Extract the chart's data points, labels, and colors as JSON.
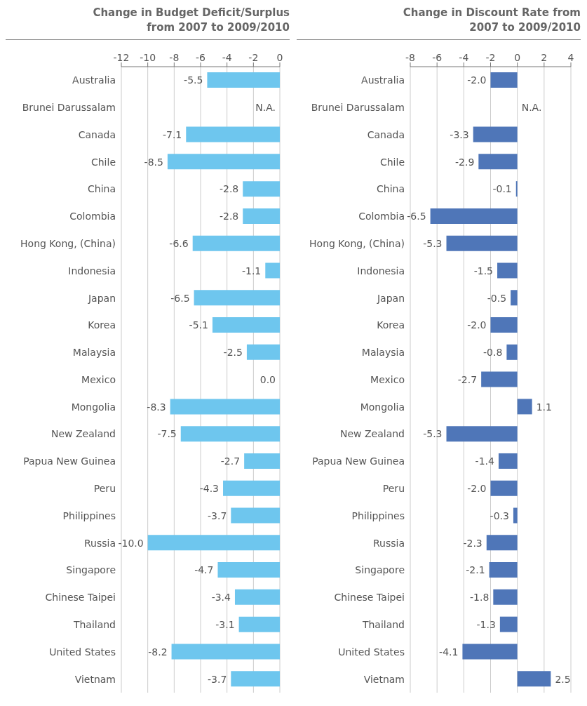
{
  "chart_data": [
    {
      "type": "bar",
      "orientation": "horizontal",
      "title": "Change in Budget Deficit/Surplus\nfrom 2007 to 2009/2010",
      "categories": [
        "Australia",
        "Brunei Darussalam",
        "Canada",
        "Chile",
        "China",
        "Colombia",
        "Hong Kong, (China)",
        "Indonesia",
        "Japan",
        "Korea",
        "Malaysia",
        "Mexico",
        "Mongolia",
        "New Zealand",
        "Papua New Guinea",
        "Peru",
        "Philippines",
        "Russia",
        "Singapore",
        "Chinese Taipei",
        "Thailand",
        "United States",
        "Vietnam"
      ],
      "values": [
        -5.5,
        null,
        -7.1,
        -8.5,
        -2.8,
        -2.8,
        -6.6,
        -1.1,
        -6.5,
        -5.1,
        -2.5,
        0.0,
        -8.3,
        -7.5,
        -2.7,
        -4.3,
        -3.7,
        -10.0,
        -4.7,
        -3.4,
        -3.1,
        -8.2,
        -3.7
      ],
      "value_labels": [
        "-5.5",
        "N.A.",
        "-7.1",
        "-8.5",
        "-2.8",
        "-2.8",
        "-6.6",
        "-1.1",
        "-6.5",
        "-5.1",
        "-2.5",
        "0.0",
        "-8.3",
        "-7.5",
        "-2.7",
        "-4.3",
        "-3.7",
        "-10.0",
        "-4.7",
        "-3.4",
        "-3.1",
        "-8.2",
        "-3.7"
      ],
      "color": "#6ec6ee",
      "xlim": [
        -12,
        0
      ],
      "xticks": [
        -12,
        -10,
        -8,
        -6,
        -4,
        -2,
        0
      ],
      "grid": "x"
    },
    {
      "type": "bar",
      "orientation": "horizontal",
      "title": "Change in Discount Rate from\n2007 to 2009/2010",
      "categories": [
        "Australia",
        "Brunei Darussalam",
        "Canada",
        "Chile",
        "China",
        "Colombia",
        "Hong Kong, (China)",
        "Indonesia",
        "Japan",
        "Korea",
        "Malaysia",
        "Mexico",
        "Mongolia",
        "New Zealand",
        "Papua New Guinea",
        "Peru",
        "Philippines",
        "Russia",
        "Singapore",
        "Chinese Taipei",
        "Thailand",
        "United States",
        "Vietnam"
      ],
      "values": [
        -2.0,
        null,
        -3.3,
        -2.9,
        -0.1,
        -6.5,
        -5.3,
        -1.5,
        -0.5,
        -2.0,
        -0.8,
        -2.7,
        1.1,
        -5.3,
        -1.4,
        -2.0,
        -0.3,
        -2.3,
        -2.1,
        -1.8,
        -1.3,
        -4.1,
        2.5
      ],
      "value_labels": [
        "-2.0",
        "N.A.",
        "-3.3",
        "-2.9",
        "-0.1",
        "-6.5",
        "-5.3",
        "-1.5",
        "-0.5",
        "-2.0",
        "-0.8",
        "-2.7",
        "1.1",
        "-5.3",
        "-1.4",
        "-2.0",
        "-0.3",
        "-2.3",
        "-2.1",
        "-1.8",
        "-1.3",
        "-4.1",
        "2.5"
      ],
      "color": "#4f76b8",
      "xlim": [
        -8,
        4
      ],
      "xticks": [
        -8,
        -6,
        -4,
        -2,
        0,
        2,
        4
      ],
      "grid": "x"
    }
  ]
}
